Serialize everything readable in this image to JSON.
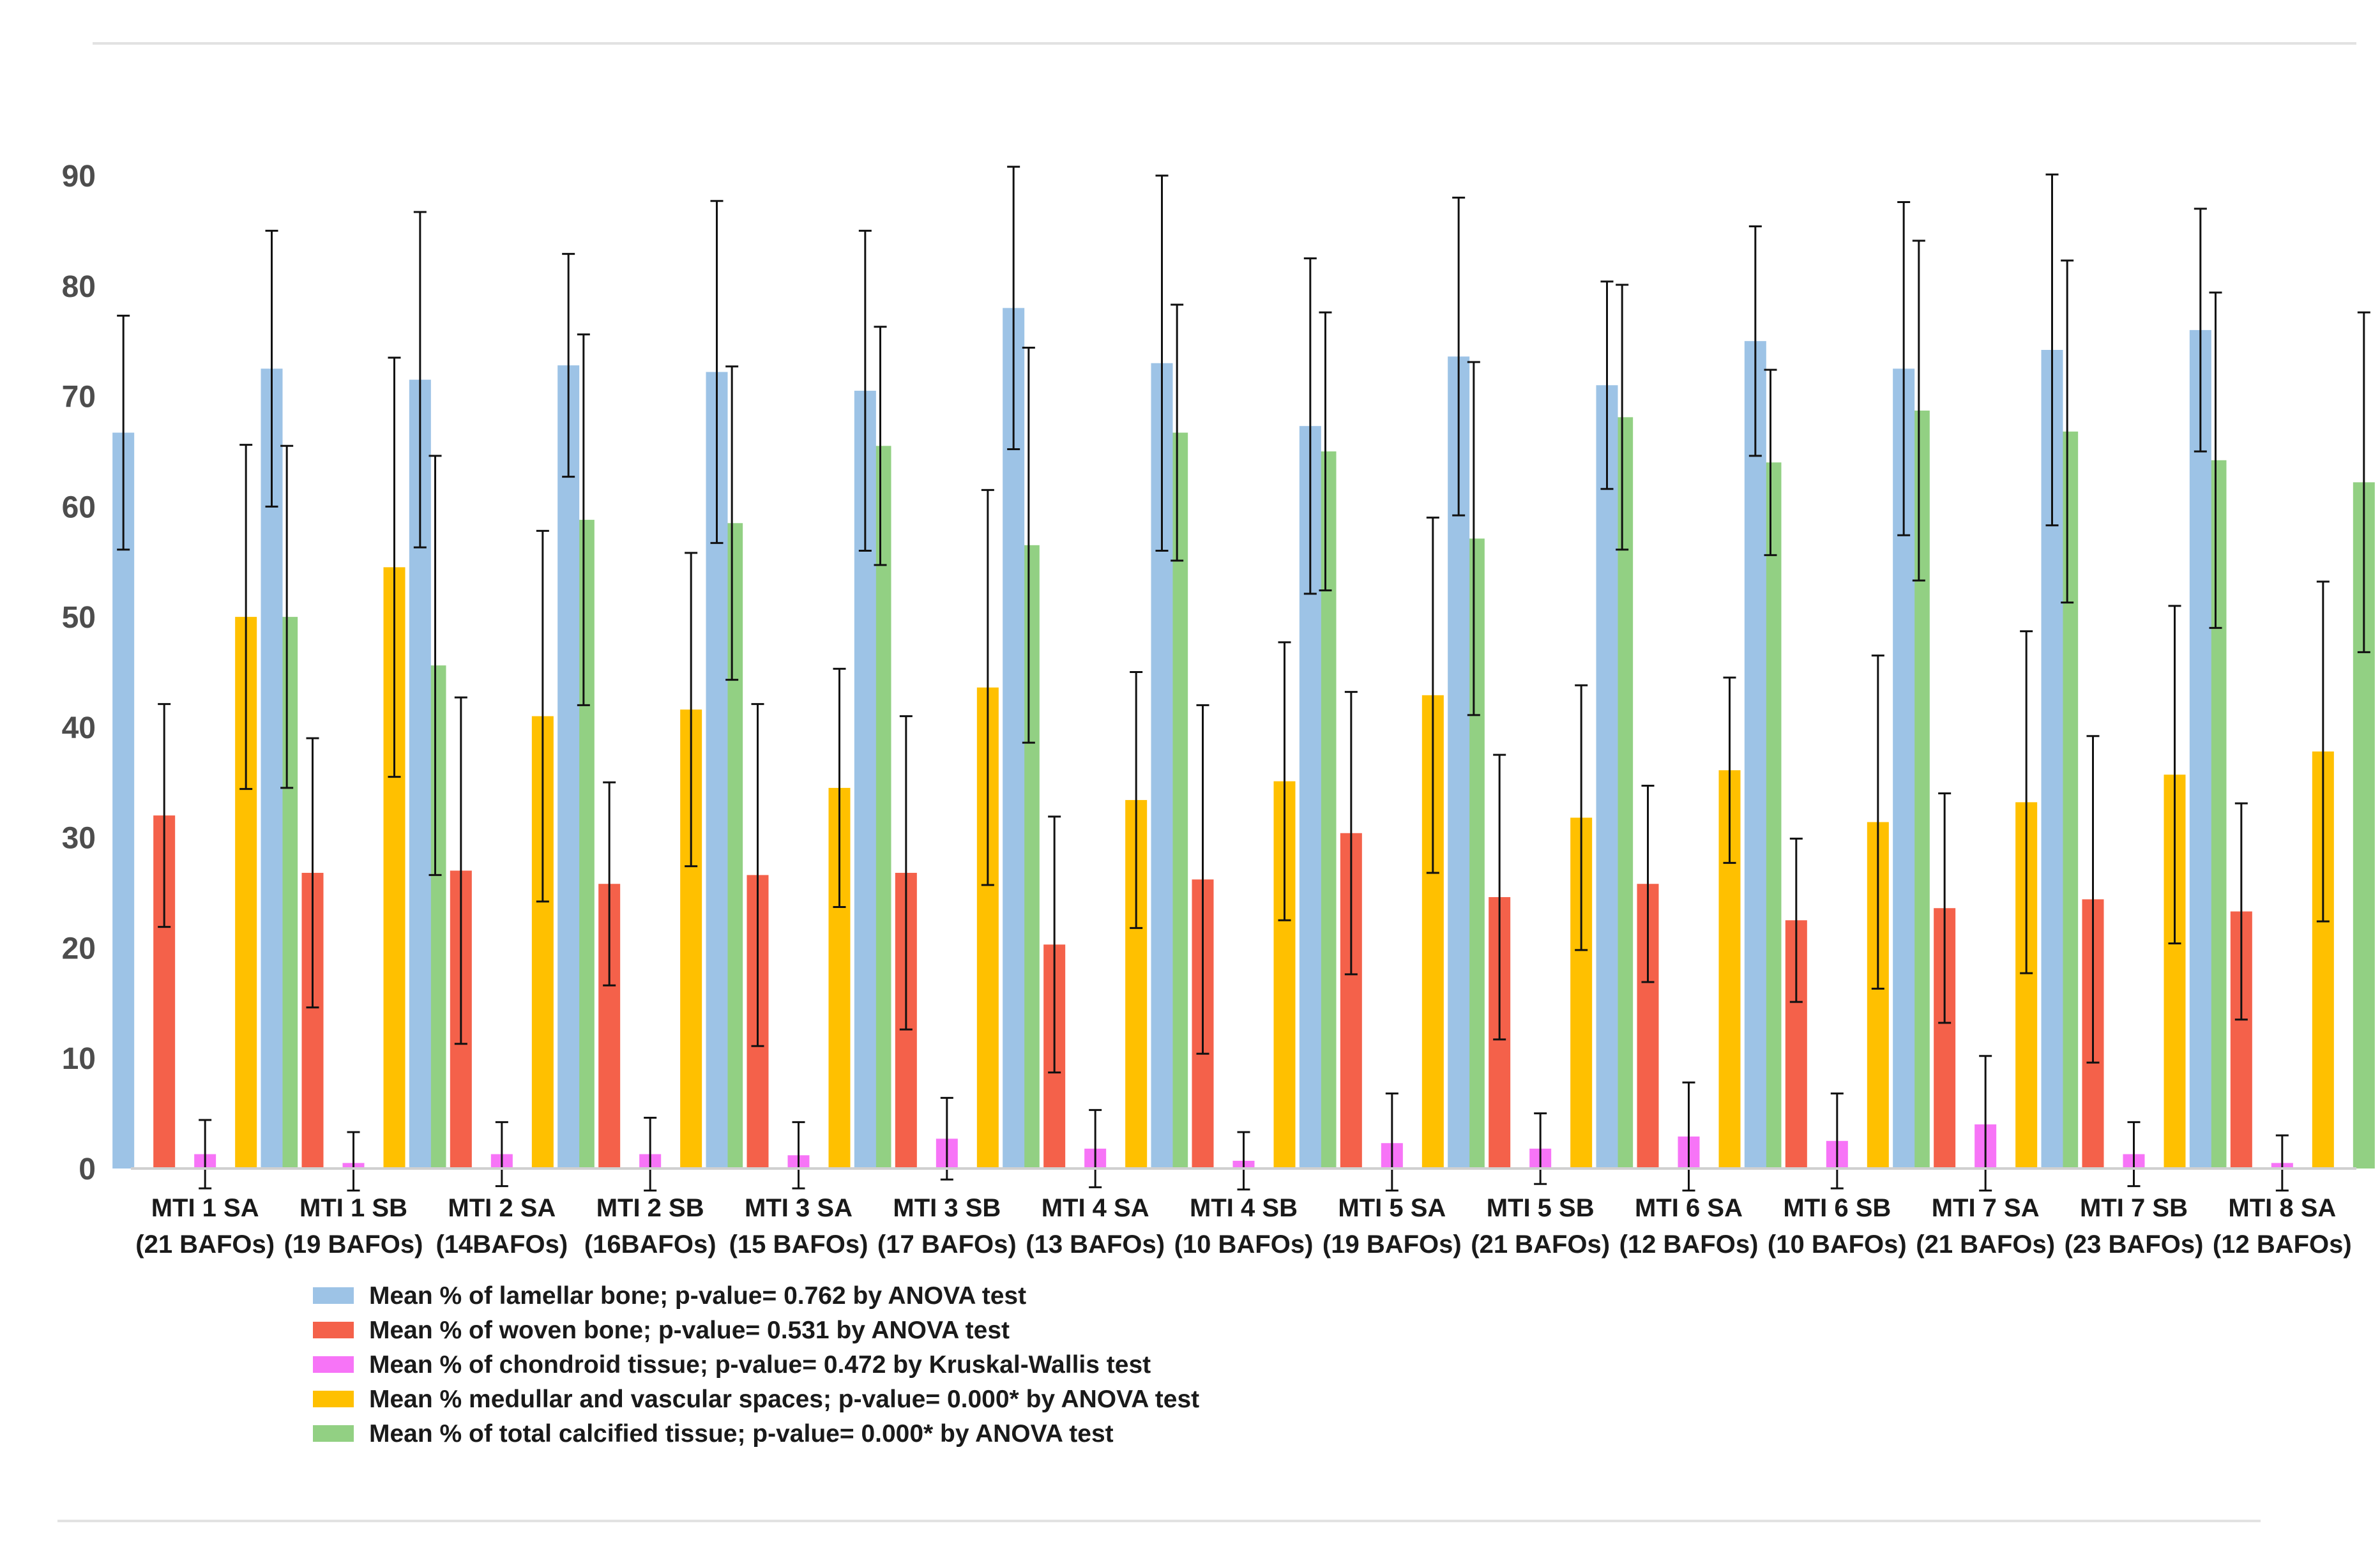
{
  "chart_data": {
    "type": "bar",
    "title": "",
    "xlabel": "",
    "ylabel": "",
    "ylim": [
      0,
      90
    ],
    "yticks": [
      0,
      10,
      20,
      30,
      40,
      50,
      60,
      70,
      80,
      90
    ],
    "grid": false,
    "legend_position": "bottom",
    "categories": [
      {
        "line1": "MTI 1  SA",
        "line2": "(21 BAFOs)"
      },
      {
        "line1": "MTI 1  SB",
        "line2": "(19 BAFOs)"
      },
      {
        "line1": "MTI 2  SA",
        "line2": "(14BAFOs)"
      },
      {
        "line1": "MTI 2  SB",
        "line2": "(16BAFOs)"
      },
      {
        "line1": "MTI 3  SA",
        "line2": "(15 BAFOs)"
      },
      {
        "line1": "MTI 3  SB",
        "line2": "(17 BAFOs)"
      },
      {
        "line1": "MTI 4  SA",
        "line2": "(13 BAFOs)"
      },
      {
        "line1": "MTI 4  SB",
        "line2": "(10 BAFOs)"
      },
      {
        "line1": "MTI 5  SA",
        "line2": "(19 BAFOs)"
      },
      {
        "line1": "MTI 5  SB",
        "line2": "(21 BAFOs)"
      },
      {
        "line1": "MTI 6  SA",
        "line2": "(12 BAFOs)"
      },
      {
        "line1": "MTI 6  SB",
        "line2": "(10 BAFOs)"
      },
      {
        "line1": "MTI 7  SA",
        "line2": "(21 BAFOs)"
      },
      {
        "line1": "MTI 7  SB",
        "line2": "(23 BAFOs)"
      },
      {
        "line1": "MTI 8  SA",
        "line2": "(12 BAFOs)"
      }
    ],
    "series": [
      {
        "name": "Mean % of lamellar bone; p-value= 0.762 by ANOVA test",
        "color": "#9dc3e6",
        "values": [
          66.7,
          72.5,
          71.5,
          72.8,
          72.2,
          70.5,
          78.0,
          73.0,
          67.3,
          73.6,
          71.0,
          75.0,
          72.5,
          74.2,
          76.0
        ],
        "errors": [
          10.6,
          12.5,
          15.2,
          10.1,
          15.5,
          14.5,
          12.8,
          17.0,
          15.2,
          14.4,
          9.4,
          10.4,
          15.1,
          15.9,
          11.0
        ]
      },
      {
        "name": "Mean % of woven bone; p-value= 0.531 by ANOVA test",
        "color": "#f4614a",
        "values": [
          32.0,
          26.8,
          27.0,
          25.8,
          26.6,
          26.8,
          20.3,
          26.2,
          30.4,
          24.6,
          25.8,
          22.5,
          23.6,
          24.4,
          23.3
        ],
        "errors": [
          10.1,
          12.2,
          15.7,
          9.2,
          15.5,
          14.2,
          11.6,
          15.8,
          12.8,
          12.9,
          8.9,
          7.4,
          10.4,
          14.8,
          9.8
        ]
      },
      {
        "name": "Mean % of chondroid tissue; p-value= 0.472 by Kruskal-Wallis test",
        "color": "#f774f7",
        "values": [
          1.3,
          0.5,
          1.3,
          1.3,
          1.2,
          2.7,
          1.8,
          0.7,
          2.3,
          1.8,
          2.9,
          2.5,
          4.0,
          1.3,
          0.5
        ],
        "errors": [
          3.1,
          2.8,
          2.9,
          3.3,
          3.0,
          3.7,
          3.5,
          2.6,
          4.5,
          3.2,
          4.9,
          4.3,
          6.2,
          2.9,
          2.5
        ]
      },
      {
        "name": "Mean % medullar and vascular spaces; p-value= 0.000* by ANOVA test",
        "color": "#ffc000",
        "values": [
          50.0,
          54.5,
          41.0,
          41.6,
          34.5,
          43.6,
          33.4,
          35.1,
          42.9,
          31.8,
          36.1,
          31.4,
          33.2,
          35.7,
          37.8
        ],
        "errors": [
          15.6,
          19.0,
          16.8,
          14.2,
          10.8,
          17.9,
          11.6,
          12.6,
          16.1,
          12.0,
          8.4,
          15.1,
          15.5,
          15.3,
          15.4
        ]
      },
      {
        "name": "Mean % of total calcified tissue; p-value= 0.000* by ANOVA test",
        "color": "#92d083",
        "values": [
          50.0,
          45.6,
          58.8,
          58.5,
          65.5,
          56.5,
          66.7,
          65.0,
          57.1,
          68.1,
          64.0,
          68.7,
          66.8,
          64.2,
          62.2
        ],
        "errors": [
          15.5,
          19.0,
          16.8,
          14.2,
          10.8,
          17.9,
          11.6,
          12.6,
          16.0,
          12.0,
          8.4,
          15.4,
          15.5,
          15.2,
          15.4
        ]
      }
    ]
  }
}
